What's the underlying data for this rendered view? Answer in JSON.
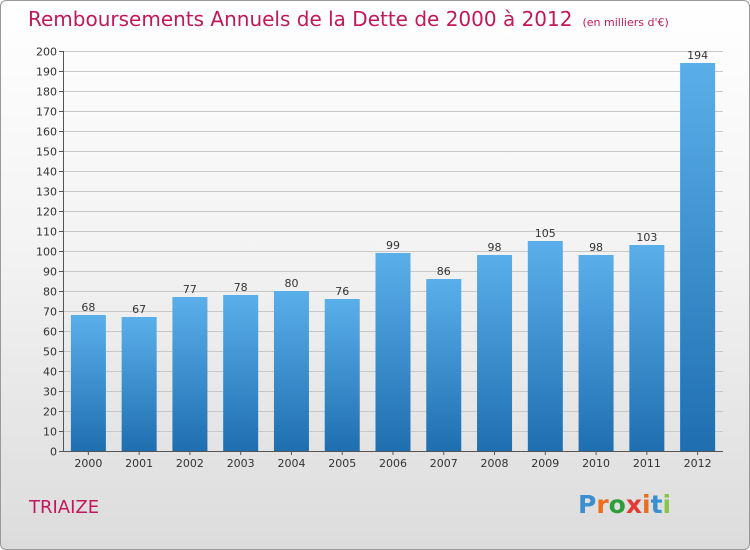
{
  "title": "Remboursements Annuels de la Dette de 2000 à 2012",
  "unit_note": "(en milliers d'€)",
  "location": "TRIAIZE",
  "logo": {
    "text": "Proxiti",
    "letters": [
      "P",
      "r",
      "o",
      "x",
      "i",
      "t",
      "i"
    ],
    "colors": [
      "#3a8fd0",
      "#ef6c1a",
      "#2e9e3a",
      "#e53935",
      "#ef6c1a",
      "#3a8fd0",
      "#8bc34a"
    ]
  },
  "colors": {
    "title": "#c2185b",
    "bar_top": "#5aafea",
    "bar_bottom": "#1f6fb0",
    "grid": "#c8c8c8"
  },
  "chart_data": {
    "type": "bar",
    "title": "Remboursements Annuels de la Dette de 2000 à 2012",
    "subtitle": "(en milliers d'€)",
    "categories": [
      "2000",
      "2001",
      "2002",
      "2003",
      "2004",
      "2005",
      "2006",
      "2007",
      "2008",
      "2009",
      "2010",
      "2011",
      "2012"
    ],
    "values": [
      68,
      67,
      77,
      78,
      80,
      76,
      99,
      86,
      98,
      105,
      98,
      103,
      194
    ],
    "ylim": [
      0,
      200
    ],
    "ytick_step": 10,
    "grid": true,
    "data_labels": true
  }
}
